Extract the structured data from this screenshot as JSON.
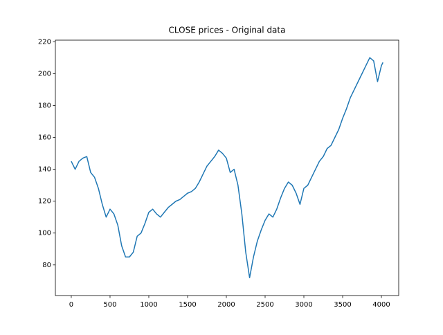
{
  "chart_data": {
    "type": "line",
    "title": "CLOSE prices - Original data",
    "x": [
      0,
      50,
      100,
      150,
      200,
      250,
      300,
      350,
      400,
      450,
      500,
      550,
      600,
      650,
      700,
      750,
      800,
      850,
      900,
      950,
      1000,
      1050,
      1100,
      1150,
      1200,
      1250,
      1300,
      1350,
      1400,
      1450,
      1500,
      1550,
      1600,
      1650,
      1700,
      1750,
      1800,
      1850,
      1900,
      1950,
      2000,
      2050,
      2100,
      2150,
      2200,
      2250,
      2300,
      2350,
      2400,
      2450,
      2500,
      2550,
      2600,
      2650,
      2700,
      2750,
      2800,
      2850,
      2900,
      2950,
      3000,
      3050,
      3100,
      3150,
      3200,
      3250,
      3300,
      3350,
      3400,
      3450,
      3500,
      3550,
      3600,
      3650,
      3700,
      3750,
      3800,
      3850,
      3900,
      3950,
      4000,
      4020
    ],
    "series": [
      {
        "name": "CLOSE",
        "color": "#1f77b4",
        "values": [
          145,
          140,
          145,
          147,
          148,
          138,
          135,
          128,
          118,
          110,
          115,
          112,
          105,
          92,
          85,
          85,
          88,
          98,
          100,
          106,
          113,
          115,
          112,
          110,
          113,
          116,
          118,
          120,
          121,
          123,
          125,
          126,
          128,
          132,
          137,
          142,
          145,
          148,
          152,
          150,
          147,
          138,
          140,
          130,
          112,
          88,
          72,
          85,
          95,
          102,
          108,
          112,
          110,
          115,
          122,
          128,
          132,
          130,
          125,
          118,
          128,
          130,
          135,
          140,
          145,
          148,
          153,
          155,
          160,
          165,
          172,
          178,
          185,
          190,
          195,
          200,
          205,
          210,
          208,
          195,
          205,
          207
        ]
      }
    ],
    "xlim": [
      -205,
      4223
    ],
    "xticks": [
      0,
      500,
      1000,
      1500,
      2000,
      2500,
      3000,
      3500,
      4000
    ],
    "ylim": [
      60.8,
      221.0
    ],
    "yticks": [
      80,
      100,
      120,
      140,
      160,
      180,
      200,
      220
    ],
    "grid": false
  }
}
